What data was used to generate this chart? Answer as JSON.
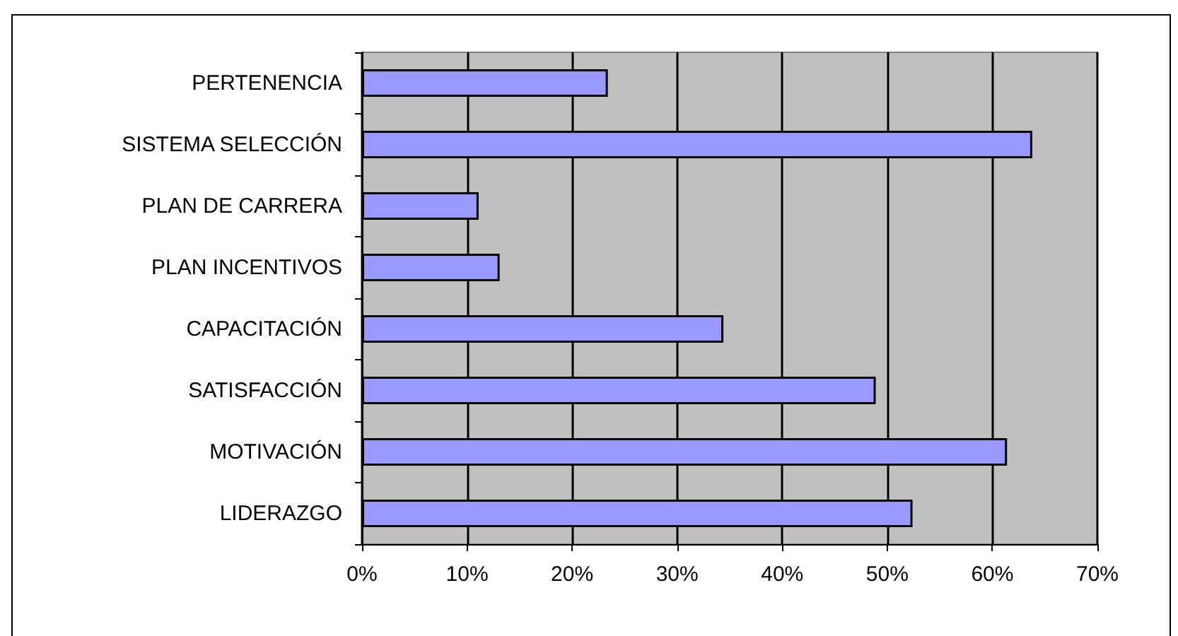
{
  "chart_data": {
    "type": "bar",
    "orientation": "horizontal",
    "categories": [
      "PERTENENCIA",
      "SISTEMA SELECCIÓN",
      "PLAN DE CARRERA",
      "PLAN INCENTIVOS",
      "CAPACITACIÓN",
      "SATISFACCIÓN",
      "MOTIVACIÓN",
      "LIDERAZGO"
    ],
    "values": [
      23.4,
      63.8,
      11.1,
      13.1,
      34.4,
      48.9,
      61.4,
      52.4
    ],
    "color": "#9999ff",
    "xlim": [
      0,
      70
    ],
    "xticks": [
      {
        "value": 0,
        "label": "0%"
      },
      {
        "value": 10,
        "label": "10%"
      },
      {
        "value": 20,
        "label": "20%"
      },
      {
        "value": 30,
        "label": "30%"
      },
      {
        "value": 40,
        "label": "40%"
      },
      {
        "value": 50,
        "label": "50%"
      },
      {
        "value": 60,
        "label": "60%"
      },
      {
        "value": 70,
        "label": "70%"
      }
    ],
    "grid": "x"
  }
}
